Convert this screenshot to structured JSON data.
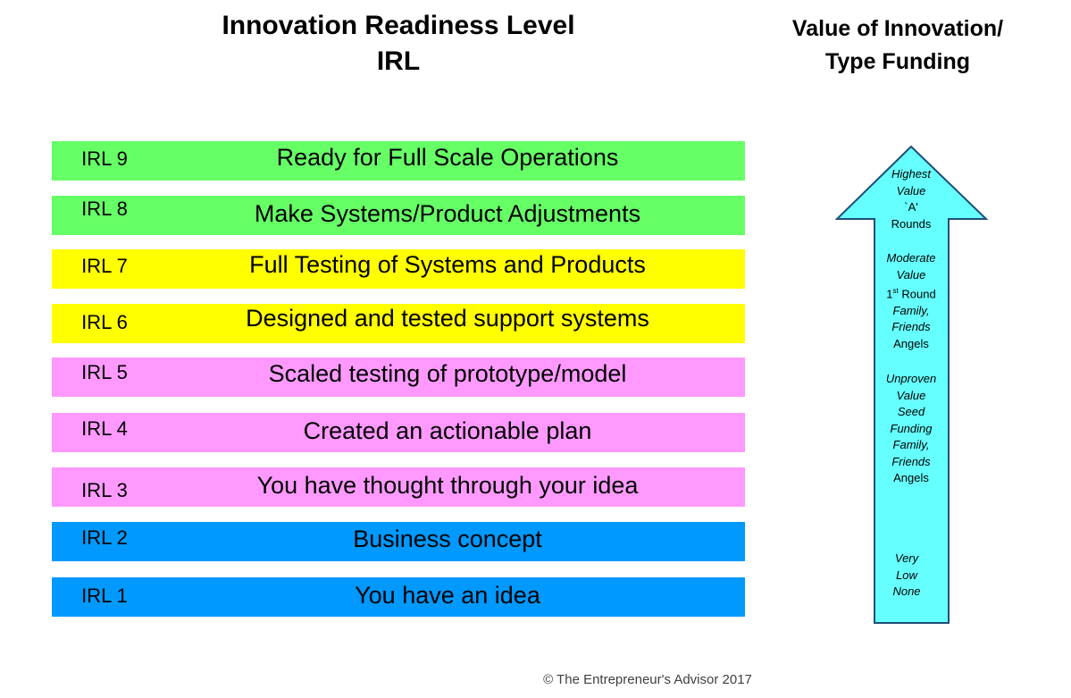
{
  "title": {
    "line1": "Innovation Readiness Level",
    "line2": "IRL"
  },
  "side_title": {
    "line1": "Value of Innovation/",
    "line2": "Type Funding"
  },
  "levels": [
    {
      "id": "IRL 9",
      "text": "Ready for Full Scale Operations",
      "color": "#66ff66"
    },
    {
      "id": "IRL 8",
      "text": "Make Systems/Product Adjustments",
      "color": "#66ff66"
    },
    {
      "id": "IRL 7",
      "text": "Full Testing of Systems and Products",
      "color": "#ffff00"
    },
    {
      "id": "IRL 6",
      "text": "Designed and tested support systems",
      "color": "#ffff00"
    },
    {
      "id": "IRL 5",
      "text": "Scaled testing of prototype/model",
      "color": "#ff99ff"
    },
    {
      "id": "IRL 4",
      "text": "Created an actionable plan",
      "color": "#ff99ff"
    },
    {
      "id": "IRL 3",
      "text": "You have thought through your idea",
      "color": "#ff99ff"
    },
    {
      "id": "IRL 2",
      "text": "Business concept",
      "color": "#0099ff"
    },
    {
      "id": "IRL 1",
      "text": "You have an idea",
      "color": "#0099ff"
    }
  ],
  "arrow": {
    "fill": "#66ffff",
    "stroke": "#1f4e79",
    "highest": {
      "line1": "Highest",
      "line2": "Value",
      "line3": "`A'",
      "line4": "Rounds"
    },
    "moderate": {
      "line1": "Moderate",
      "line2": "Value",
      "line3_main": "1",
      "line3_sup": "st",
      "line3_rest": " Round",
      "line4": "Family,",
      "line5": "Friends",
      "line6": "Angels"
    },
    "unproven": {
      "line1": "Unproven",
      "line2": "Value",
      "line3": "Seed",
      "line4": "Funding",
      "line5": "Family,",
      "line6": "Friends",
      "line7": "Angels"
    },
    "very_low": {
      "line1": "Very",
      "line2": "Low",
      "line3": "None"
    }
  },
  "copyright": "© The Entrepreneur's Advisor 2017"
}
